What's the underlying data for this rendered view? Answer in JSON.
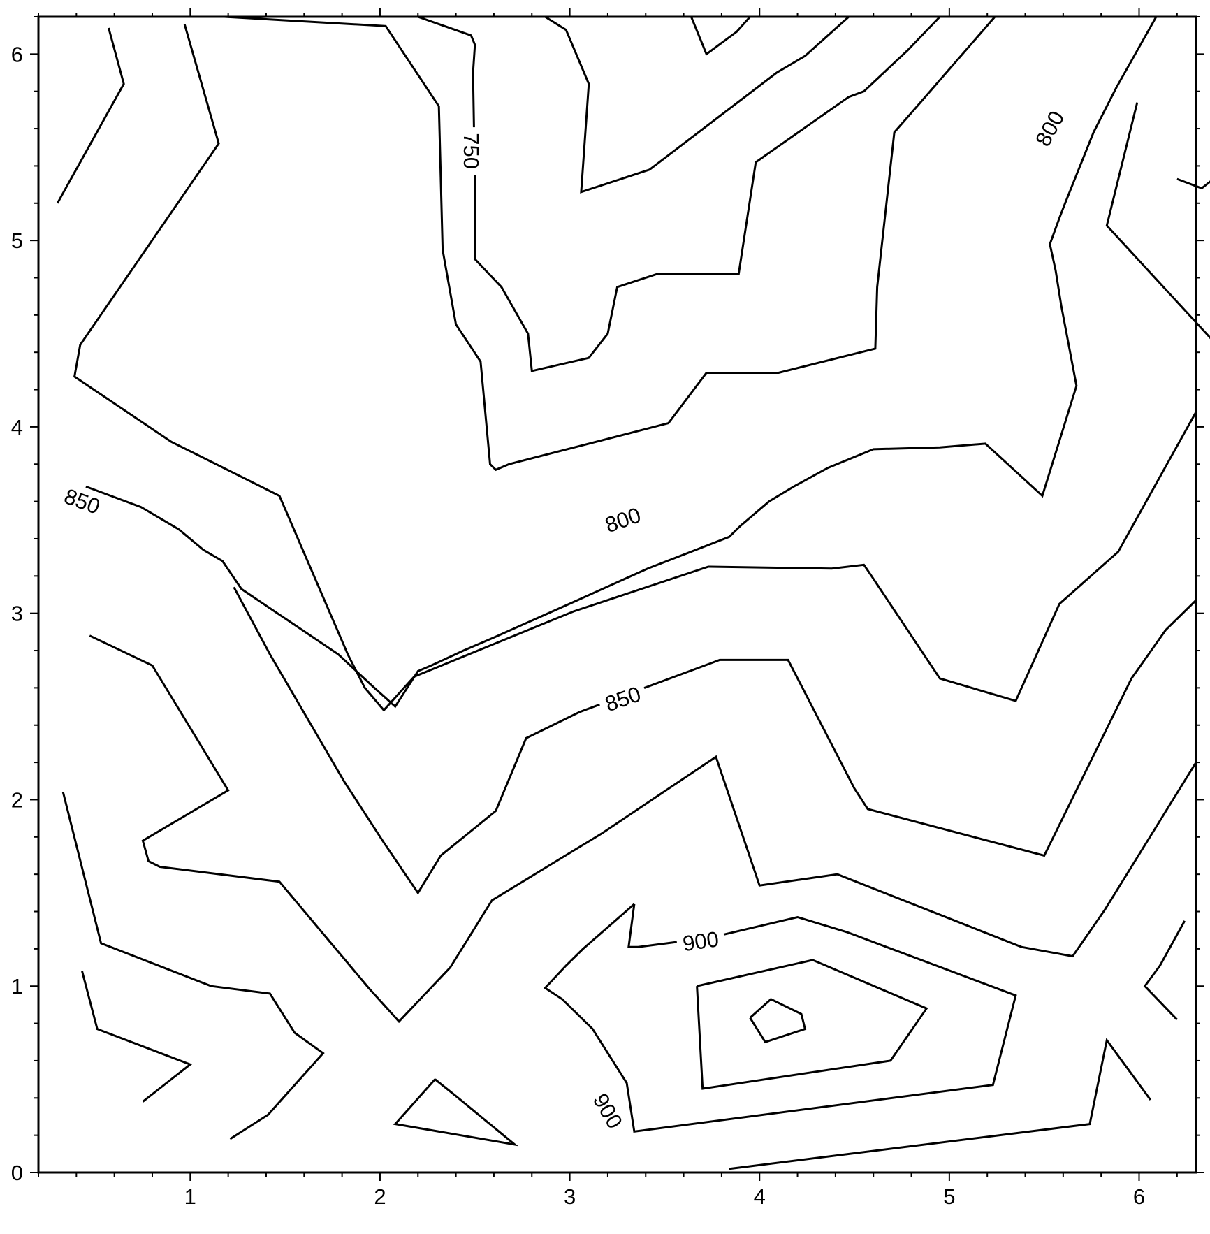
{
  "chart_data": {
    "type": "contour",
    "title": "",
    "xlabel": "",
    "ylabel": "",
    "xlim": [
      0.2,
      6.3
    ],
    "ylim": [
      0,
      6.2
    ],
    "xticks": [
      "1",
      "2",
      "3",
      "4",
      "5",
      "6"
    ],
    "yticks": [
      "0",
      "1",
      "2",
      "3",
      "4",
      "5",
      "6"
    ],
    "levels": [
      750,
      800,
      850,
      900
    ],
    "contour_labels": [
      {
        "text": "750",
        "x": 2.48,
        "y": 5.48,
        "angle": 90
      },
      {
        "text": "800",
        "x": 3.28,
        "y": 3.5,
        "angle": -19
      },
      {
        "text": "800",
        "x": 5.53,
        "y": 5.6,
        "angle": -62
      },
      {
        "text": "850",
        "x": 0.43,
        "y": 3.6,
        "angle": 20
      },
      {
        "text": "850",
        "x": 3.28,
        "y": 2.54,
        "angle": -19
      },
      {
        "text": "900",
        "x": 3.69,
        "y": 1.24,
        "angle": -8
      },
      {
        "text": "900",
        "x": 3.2,
        "y": 0.33,
        "angle": 60
      }
    ],
    "contours": [
      {
        "level": 750,
        "points": [
          [
            2.2,
            6.2
          ],
          [
            2.48,
            6.1
          ],
          [
            2.5,
            6.05
          ],
          [
            2.49,
            5.9
          ],
          [
            2.5,
            5.3
          ],
          [
            2.5,
            4.9
          ],
          [
            2.64,
            4.75
          ],
          [
            2.78,
            4.5
          ],
          [
            2.8,
            4.3
          ],
          [
            3.1,
            4.37
          ],
          [
            3.2,
            4.5
          ],
          [
            3.25,
            4.75
          ],
          [
            3.46,
            4.82
          ],
          [
            3.89,
            4.82
          ],
          [
            3.98,
            5.42
          ],
          [
            4.47,
            5.77
          ],
          [
            4.55,
            5.8
          ],
          [
            4.78,
            6.02
          ],
          [
            4.95,
            6.2
          ]
        ]
      },
      {
        "level": 750,
        "points": [
          [
            3.64,
            6.2
          ],
          [
            3.72,
            6.0
          ],
          [
            3.88,
            6.12
          ],
          [
            3.95,
            6.2
          ]
        ]
      },
      {
        "level": 800,
        "points": [
          [
            1.18,
            6.2
          ],
          [
            2.03,
            6.15
          ],
          [
            2.31,
            5.72
          ],
          [
            2.33,
            4.95
          ],
          [
            2.4,
            4.55
          ],
          [
            2.53,
            4.35
          ],
          [
            2.58,
            3.8
          ],
          [
            2.61,
            3.77
          ],
          [
            2.68,
            3.8
          ],
          [
            3.52,
            4.02
          ],
          [
            3.72,
            4.29
          ],
          [
            4.1,
            4.29
          ],
          [
            4.61,
            4.42
          ],
          [
            4.62,
            4.75
          ],
          [
            4.71,
            5.58
          ],
          [
            4.83,
            5.72
          ],
          [
            5.24,
            6.2
          ]
        ]
      },
      {
        "level": 800,
        "points": [
          [
            2.87,
            6.2
          ],
          [
            2.98,
            6.13
          ],
          [
            3.1,
            5.84
          ],
          [
            3.06,
            5.26
          ],
          [
            3.42,
            5.38
          ],
          [
            4.09,
            5.9
          ],
          [
            4.24,
            5.99
          ],
          [
            4.47,
            6.2
          ]
        ]
      },
      {
        "level": 800,
        "points": [
          [
            0.45,
            3.68
          ],
          [
            0.74,
            3.57
          ],
          [
            0.94,
            3.45
          ],
          [
            1.07,
            3.34
          ],
          [
            1.17,
            3.28
          ],
          [
            1.27,
            3.13
          ],
          [
            1.78,
            2.78
          ],
          [
            1.97,
            2.6
          ],
          [
            2.08,
            2.5
          ],
          [
            2.2,
            2.69
          ],
          [
            2.27,
            2.72
          ],
          [
            2.44,
            2.8
          ],
          [
            2.6,
            2.87
          ],
          [
            3.04,
            3.07
          ],
          [
            3.41,
            3.24
          ],
          [
            3.84,
            3.41
          ],
          [
            3.9,
            3.47
          ],
          [
            4.05,
            3.6
          ],
          [
            4.18,
            3.68
          ],
          [
            4.36,
            3.78
          ],
          [
            4.6,
            3.88
          ],
          [
            4.95,
            3.89
          ],
          [
            5.19,
            3.91
          ],
          [
            5.49,
            3.63
          ],
          [
            5.67,
            4.22
          ],
          [
            5.59,
            4.65
          ],
          [
            5.56,
            4.84
          ],
          [
            5.53,
            4.98
          ],
          [
            5.58,
            5.12
          ],
          [
            5.61,
            5.2
          ],
          [
            5.76,
            5.58
          ],
          [
            5.88,
            5.82
          ],
          [
            6.09,
            6.2
          ]
        ]
      },
      {
        "level": 800,
        "points": [
          [
            6.2,
            5.33
          ],
          [
            6.33,
            5.28
          ],
          [
            6.38,
            5.32
          ],
          [
            6.42,
            5.27
          ]
        ]
      },
      {
        "level": 850,
        "points": [
          [
            0.57,
            6.14
          ],
          [
            0.65,
            5.84
          ],
          [
            0.3,
            5.2
          ]
        ]
      },
      {
        "level": 850,
        "points": [
          [
            0.97,
            6.16
          ],
          [
            1.15,
            5.52
          ],
          [
            0.42,
            4.44
          ],
          [
            0.39,
            4.27
          ],
          [
            0.9,
            3.92
          ],
          [
            1.47,
            3.63
          ],
          [
            1.83,
            2.78
          ],
          [
            1.92,
            2.6
          ],
          [
            2.02,
            2.48
          ],
          [
            2.18,
            2.66
          ],
          [
            3.02,
            3.01
          ],
          [
            3.73,
            3.25
          ],
          [
            4.38,
            3.24
          ],
          [
            4.55,
            3.26
          ],
          [
            4.59,
            3.2
          ],
          [
            4.95,
            2.65
          ],
          [
            5.35,
            2.53
          ],
          [
            5.58,
            3.05
          ],
          [
            5.89,
            3.33
          ],
          [
            6.3,
            4.08
          ]
        ]
      },
      {
        "level": 850,
        "points": [
          [
            6.4,
            4.45
          ],
          [
            5.83,
            5.08
          ],
          [
            5.99,
            5.74
          ]
        ]
      },
      {
        "level": 850,
        "points": [
          [
            0.47,
            2.88
          ],
          [
            0.8,
            2.72
          ],
          [
            1.2,
            2.05
          ],
          [
            0.75,
            1.78
          ],
          [
            0.78,
            1.67
          ],
          [
            0.84,
            1.64
          ],
          [
            1.47,
            1.56
          ],
          [
            1.94,
            0.99
          ],
          [
            2.1,
            0.81
          ],
          [
            2.37,
            1.1
          ],
          [
            2.59,
            1.46
          ],
          [
            3.17,
            1.82
          ],
          [
            3.77,
            2.23
          ],
          [
            4.0,
            1.54
          ],
          [
            4.41,
            1.6
          ],
          [
            5.38,
            1.21
          ],
          [
            5.65,
            1.16
          ],
          [
            5.82,
            1.41
          ],
          [
            6.3,
            2.2
          ]
        ]
      },
      {
        "level": 850,
        "points": [
          [
            0.33,
            2.04
          ],
          [
            0.53,
            1.23
          ],
          [
            1.11,
            1.0
          ],
          [
            1.42,
            0.96
          ],
          [
            1.55,
            0.75
          ],
          [
            1.7,
            0.64
          ],
          [
            1.41,
            0.31
          ],
          [
            1.21,
            0.18
          ]
        ]
      },
      {
        "level": 850,
        "points": [
          [
            0.43,
            1.08
          ],
          [
            0.51,
            0.77
          ],
          [
            1.0,
            0.58
          ],
          [
            0.75,
            0.38
          ]
        ]
      },
      {
        "level": 850,
        "points": [
          [
            2.29,
            0.5
          ],
          [
            2.4,
            0.41
          ],
          [
            2.71,
            0.15
          ],
          [
            2.08,
            0.26
          ],
          [
            2.29,
            0.5
          ]
        ]
      },
      {
        "level": 850,
        "points": [
          [
            6.3,
            3.07
          ],
          [
            6.14,
            2.91
          ],
          [
            5.96,
            2.65
          ],
          [
            5.5,
            1.7
          ],
          [
            4.57,
            1.95
          ],
          [
            4.5,
            2.06
          ],
          [
            4.15,
            2.75
          ],
          [
            3.79,
            2.75
          ],
          [
            3.05,
            2.47
          ],
          [
            2.77,
            2.33
          ],
          [
            2.61,
            1.94
          ],
          [
            2.32,
            1.7
          ],
          [
            2.2,
            1.5
          ],
          [
            2.02,
            1.77
          ],
          [
            1.81,
            2.1
          ],
          [
            1.42,
            2.78
          ],
          [
            1.23,
            3.14
          ]
        ]
      },
      {
        "level": 900,
        "points": [
          [
            3.34,
            1.44
          ],
          [
            3.31,
            1.21
          ],
          [
            3.36,
            1.21
          ],
          [
            3.74,
            1.26
          ],
          [
            4.2,
            1.37
          ],
          [
            4.46,
            1.29
          ],
          [
            5.35,
            0.95
          ],
          [
            5.23,
            0.47
          ],
          [
            3.34,
            0.22
          ],
          [
            3.3,
            0.48
          ],
          [
            3.12,
            0.77
          ],
          [
            2.96,
            0.93
          ],
          [
            2.87,
            0.99
          ],
          [
            2.98,
            1.11
          ],
          [
            3.07,
            1.2
          ],
          [
            3.34,
            1.44
          ]
        ]
      },
      {
        "level": 900,
        "points": [
          [
            3.67,
            1.0
          ],
          [
            4.28,
            1.14
          ],
          [
            4.88,
            0.88
          ],
          [
            4.69,
            0.6
          ],
          [
            3.7,
            0.45
          ],
          [
            3.67,
            1.0
          ]
        ]
      },
      {
        "level": 900,
        "points": [
          [
            3.95,
            0.83
          ],
          [
            4.06,
            0.93
          ],
          [
            4.22,
            0.85
          ],
          [
            4.24,
            0.77
          ],
          [
            4.03,
            0.7
          ],
          [
            3.95,
            0.83
          ]
        ]
      },
      {
        "level": 900,
        "points": [
          [
            6.24,
            1.35
          ],
          [
            6.11,
            1.11
          ],
          [
            6.03,
            1.0
          ],
          [
            6.2,
            0.82
          ]
        ]
      },
      {
        "level": 900,
        "points": [
          [
            6.06,
            0.39
          ],
          [
            5.83,
            0.71
          ],
          [
            5.74,
            0.26
          ],
          [
            3.84,
            0.02
          ]
        ]
      }
    ]
  }
}
